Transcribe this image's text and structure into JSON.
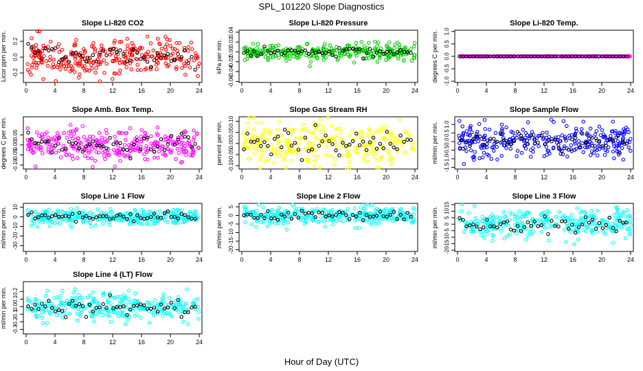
{
  "page": {
    "title": "SPL_101220  Slope Diagnostics",
    "xlabel": "Hour of Day (UTC)"
  },
  "chart_data": [
    {
      "type": "scatter",
      "title": "Slope Li-820 CO2",
      "ylabel": "Licor ppm per min.",
      "color": "#ff0000",
      "xlim": [
        0,
        24
      ],
      "xticks": [
        0,
        4,
        8,
        12,
        16,
        20,
        24
      ],
      "ylim": [
        -0.32,
        0.34
      ],
      "yticks": [
        -0.2,
        0.0,
        0.2
      ],
      "ytick_labels": [
        "-0.2",
        "0.0",
        "0.2"
      ],
      "n_points": 300,
      "spread": 0.12,
      "seed": 11
    },
    {
      "type": "scatter",
      "title": "Slope Li-820 Pressure",
      "ylabel": "kPa per min.",
      "color": "#00cc00",
      "xlim": [
        0,
        24
      ],
      "xticks": [
        0,
        4,
        8,
        12,
        16,
        20,
        24
      ],
      "ylim": [
        -0.062,
        0.044
      ],
      "yticks": [
        -0.06,
        -0.04,
        -0.02,
        0.0,
        0.02,
        0.04
      ],
      "ytick_labels": [
        "-0.06",
        "-0.04",
        "-0.02",
        "0.00",
        "0.02",
        "0.04"
      ],
      "n_points": 300,
      "spread": 0.008,
      "seed": 23
    },
    {
      "type": "scatter",
      "title": "Slope Li-820 Temp.",
      "ylabel": "degrees C per min.",
      "color": "#ff00ff",
      "xlim": [
        0,
        24
      ],
      "xticks": [
        0,
        4,
        8,
        12,
        16,
        20,
        24
      ],
      "ylim": [
        -1.05,
        1.05
      ],
      "yticks": [
        -1.0,
        -0.5,
        0.0,
        0.5,
        1.0
      ],
      "ytick_labels": [
        "-1.0",
        "-0.5",
        "0.0",
        "0.5",
        "1.0"
      ],
      "n_points": 300,
      "spread": 0.0,
      "seed": 31
    },
    {
      "type": "scatter",
      "title": "Slope Amb. Box Temp.",
      "ylabel": "degrees C per min.",
      "color": "#ff00ff",
      "xlim": [
        0,
        24
      ],
      "xticks": [
        0,
        4,
        8,
        12,
        16,
        20,
        24
      ],
      "ylim": [
        -0.12,
        0.14
      ],
      "yticks": [
        -0.1,
        -0.05,
        0.0,
        0.05
      ],
      "ytick_labels": [
        "-0.10",
        "-0.05",
        "0.00",
        "0.05"
      ],
      "n_points": 300,
      "spread": 0.04,
      "seed": 47
    },
    {
      "type": "scatter",
      "title": "Slope Gas Stream RH",
      "ylabel": "percent per min.",
      "color": "#ffff00",
      "xlim": [
        0,
        24
      ],
      "xticks": [
        0,
        4,
        8,
        12,
        16,
        20,
        24
      ],
      "ylim": [
        -0.115,
        0.12
      ],
      "yticks": [
        -0.1,
        -0.05,
        0.0,
        0.05,
        0.1
      ],
      "ytick_labels": [
        "-0.10",
        "-0.05",
        "0.00",
        "0.05",
        "0.10"
      ],
      "n_points": 300,
      "spread": 0.05,
      "seed": 59
    },
    {
      "type": "scatter",
      "title": "Slope Sample Flow",
      "ylabel": "ml/min per min.",
      "color": "#0000ff",
      "xlim": [
        0,
        24
      ],
      "xticks": [
        0,
        4,
        8,
        12,
        16,
        20,
        24
      ],
      "ylim": [
        -1.6,
        1.45
      ],
      "yticks": [
        -1.5,
        -1.0,
        -0.5,
        0.0,
        0.5,
        1.0
      ],
      "ytick_labels": [
        "-1.5",
        "-1.0",
        "-0.5",
        "0.0",
        "0.5",
        "1.0"
      ],
      "n_points": 300,
      "spread": 0.45,
      "seed": 67
    },
    {
      "type": "scatter",
      "title": "Slope Line 1 Flow",
      "ylabel": "ml/min per min.",
      "color": "#00ffff",
      "xlim": [
        0,
        24
      ],
      "xticks": [
        0,
        4,
        8,
        12,
        16,
        20,
        24
      ],
      "ylim": [
        -36,
        14
      ],
      "yticks": [
        -30,
        -20,
        -10,
        0,
        10
      ],
      "ytick_labels": [
        "-30",
        "-20",
        "-10",
        "0",
        "10"
      ],
      "n_points": 300,
      "spread": 4,
      "seed": 71
    },
    {
      "type": "scatter",
      "title": "Slope Line 2 Flow",
      "ylabel": "ml/min per min.",
      "color": "#00ffff",
      "xlim": [
        0,
        24
      ],
      "xticks": [
        0,
        4,
        8,
        12,
        16,
        20,
        24
      ],
      "ylim": [
        -21,
        7
      ],
      "yticks": [
        -20,
        -15,
        -10,
        -5,
        0,
        5
      ],
      "ytick_labels": [
        "-20",
        "-15",
        "-10",
        "-5",
        "0",
        "5"
      ],
      "n_points": 300,
      "spread": 2.5,
      "seed": 83
    },
    {
      "type": "scatter",
      "title": "Slope Line 3 Flow",
      "ylabel": "ml/min per min.",
      "color": "#00ffff",
      "xlim": [
        0,
        24
      ],
      "xticks": [
        0,
        4,
        8,
        12,
        16,
        20,
        24
      ],
      "ylim": [
        -21,
        16
      ],
      "yticks": [
        -20,
        -15,
        -10,
        -5,
        0,
        5,
        10,
        15
      ],
      "ytick_labels": [
        "-20",
        "-15",
        "-10",
        "-5",
        "0",
        "5",
        "10",
        "15"
      ],
      "n_points": 300,
      "spread": 6,
      "seed": 97
    },
    {
      "type": "scatter",
      "title": "Slope Line 4 (LT) Flow",
      "ylabel": "ml/min per min.",
      "color": "#00ffff",
      "xlim": [
        0,
        24
      ],
      "xticks": [
        0,
        4,
        8,
        12,
        16,
        20,
        24
      ],
      "ylim": [
        -0.36,
        0.33
      ],
      "yticks": [
        -0.3,
        -0.2,
        -0.1,
        0.0,
        0.1,
        0.2
      ],
      "ytick_labels": [
        "-0.3",
        "-0.2",
        "-0.1",
        "0.0",
        "0.1",
        "0.2"
      ],
      "n_points": 300,
      "spread": 0.09,
      "seed": 101
    }
  ]
}
